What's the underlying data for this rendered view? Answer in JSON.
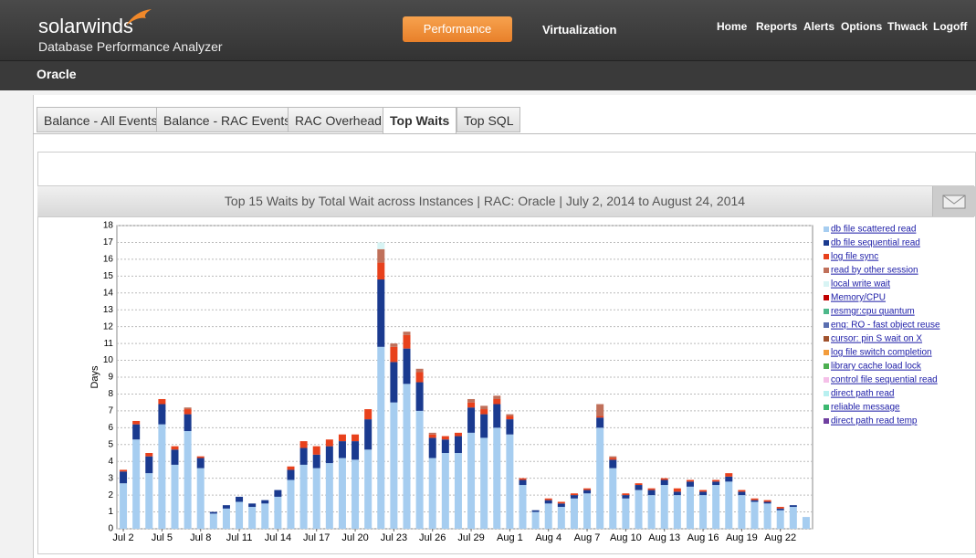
{
  "header": {
    "logo": "solarwinds",
    "product": "Database Performance Analyzer",
    "nav": [
      "Performance",
      "Virtualization"
    ],
    "links": [
      "Home",
      "Reports",
      "Alerts",
      "Options",
      "Thwack",
      "Logoff"
    ]
  },
  "subbar": {
    "title": "Oracle"
  },
  "tabs": [
    "Balance - All Events",
    "Balance - RAC Events",
    "RAC Overhead",
    "Top Waits",
    "Top SQL"
  ],
  "chart_data": {
    "type": "stacked_bar",
    "title": "Top 15 Waits by Total Wait across Instances | RAC: Oracle | July 2, 2014 to August 24, 2014",
    "y_label": "Days",
    "categories": [
      "Jul 2",
      null,
      null,
      "Jul 5",
      null,
      null,
      "Jul 8",
      null,
      null,
      "Jul 11",
      null,
      null,
      "Jul 14",
      null,
      null,
      "Jul 17",
      null,
      null,
      "Jul 20",
      null,
      null,
      "Jul 23",
      null,
      null,
      "Jul 26",
      null,
      null,
      "Jul 29",
      null,
      null,
      "Aug 1",
      null,
      null,
      "Aug 4",
      null,
      null,
      "Aug 7",
      null,
      null,
      "Aug 10",
      null,
      null,
      "Aug 13",
      null,
      null,
      "Aug 16",
      null,
      null,
      "Aug 19",
      null,
      null,
      "Aug 22",
      null,
      null
    ],
    "ylim": [
      0,
      18
    ],
    "yticks": [
      0,
      1,
      2,
      3,
      4,
      5,
      6,
      7,
      8,
      9,
      10,
      11,
      12,
      13,
      14,
      15,
      16,
      17,
      18
    ],
    "grid": true,
    "series": [
      {
        "name": "db file scattered read",
        "color": "#a6cdf0",
        "values": [
          2.7,
          5.3,
          3.3,
          6.2,
          3.8,
          5.8,
          3.6,
          0.9,
          1.2,
          1.6,
          1.3,
          1.5,
          1.9,
          2.9,
          3.8,
          3.6,
          3.9,
          4.2,
          4.1,
          4.7,
          10.8,
          7.5,
          8.6,
          7.0,
          4.2,
          4.5,
          4.5,
          5.7,
          5.4,
          6.0,
          5.6,
          2.6,
          1.0,
          1.5,
          1.3,
          1.8,
          2.1,
          6.0,
          3.6,
          1.8,
          2.3,
          2.0,
          2.6,
          2.0,
          2.5,
          2.0,
          2.6,
          2.8,
          2.0,
          1.6,
          1.5,
          1.1,
          1.3,
          0.7
        ]
      },
      {
        "name": "db file sequential read",
        "color": "#1a3a8f",
        "values": [
          0.7,
          0.9,
          1.0,
          1.2,
          0.9,
          1.0,
          0.6,
          0.1,
          0.2,
          0.3,
          0.2,
          0.2,
          0.4,
          0.6,
          1.0,
          0.8,
          1.0,
          1.0,
          1.1,
          1.8,
          4.0,
          2.4,
          2.1,
          1.7,
          1.2,
          0.8,
          1.0,
          1.5,
          1.4,
          1.4,
          0.9,
          0.3,
          0.1,
          0.2,
          0.2,
          0.2,
          0.2,
          0.6,
          0.5,
          0.2,
          0.3,
          0.3,
          0.3,
          0.2,
          0.3,
          0.2,
          0.2,
          0.3,
          0.2,
          0.1,
          0.1,
          0.1,
          0.1,
          0
        ]
      },
      {
        "name": "log file sync",
        "color": "#e8411c",
        "values": [
          0.1,
          0.2,
          0.2,
          0.3,
          0.2,
          0.3,
          0.1,
          0,
          0,
          0,
          0,
          0,
          0,
          0.2,
          0.4,
          0.5,
          0.4,
          0.4,
          0.4,
          0.6,
          1.0,
          0.9,
          0.8,
          0.6,
          0.2,
          0.2,
          0.2,
          0.3,
          0.3,
          0.3,
          0.2,
          0.1,
          0,
          0.1,
          0.1,
          0.1,
          0.1,
          0.1,
          0.1,
          0.1,
          0.1,
          0.1,
          0.1,
          0.2,
          0.1,
          0.1,
          0.1,
          0.2,
          0.1,
          0.1,
          0.1,
          0.1,
          0,
          0
        ]
      },
      {
        "name": "read by other session",
        "color": "#c0705a",
        "values": [
          0,
          0,
          0,
          0,
          0,
          0.1,
          0,
          0,
          0,
          0,
          0,
          0,
          0,
          0,
          0,
          0,
          0,
          0,
          0,
          0,
          0.8,
          0.2,
          0.2,
          0.2,
          0.1,
          0,
          0,
          0.2,
          0.2,
          0.2,
          0.1,
          0,
          0,
          0,
          0,
          0,
          0,
          0.7,
          0.1,
          0,
          0,
          0,
          0,
          0,
          0,
          0,
          0,
          0,
          0,
          0,
          0,
          0,
          0,
          0
        ]
      },
      {
        "name": "local write wait",
        "color": "#d8f4f4",
        "values": [
          0,
          0,
          0,
          0,
          0,
          0,
          0,
          0,
          0,
          0,
          0,
          0,
          0,
          0,
          0,
          0,
          0,
          0,
          0,
          0,
          0.4,
          0,
          0,
          0,
          0,
          0,
          0,
          0,
          0,
          0,
          0,
          0,
          0,
          0,
          0,
          0,
          0,
          0,
          0,
          0,
          0,
          0,
          0,
          0,
          0,
          0,
          0,
          0,
          0,
          0,
          0,
          0,
          0,
          0
        ]
      },
      {
        "name": "Memory/CPU",
        "color": "#c00000",
        "values": [
          0,
          0,
          0,
          0,
          0,
          0,
          0,
          0,
          0,
          0,
          0,
          0,
          0,
          0,
          0,
          0,
          0,
          0,
          0,
          0,
          0,
          0,
          0,
          0,
          0,
          0,
          0,
          0,
          0,
          0,
          0,
          0,
          0,
          0,
          0,
          0,
          0,
          0,
          0,
          0,
          0,
          0,
          0,
          0,
          0,
          0,
          0,
          0,
          0,
          0,
          0,
          0,
          0,
          0
        ]
      },
      {
        "name": "resmgr:cpu quantum",
        "color": "#4db88a",
        "values": [
          0,
          0,
          0,
          0,
          0,
          0,
          0,
          0,
          0,
          0,
          0,
          0,
          0,
          0,
          0,
          0,
          0,
          0,
          0,
          0,
          0,
          0,
          0,
          0,
          0,
          0,
          0,
          0,
          0,
          0,
          0,
          0,
          0,
          0,
          0,
          0,
          0,
          0,
          0,
          0,
          0,
          0,
          0,
          0,
          0,
          0,
          0,
          0,
          0,
          0,
          0,
          0,
          0,
          0
        ]
      },
      {
        "name": "enq: RO - fast object reuse",
        "color": "#5a6fb0",
        "values": [
          0,
          0,
          0,
          0,
          0,
          0,
          0,
          0,
          0,
          0,
          0,
          0,
          0,
          0,
          0,
          0,
          0,
          0,
          0,
          0,
          0,
          0,
          0,
          0,
          0,
          0,
          0,
          0,
          0,
          0,
          0,
          0,
          0,
          0,
          0,
          0,
          0,
          0,
          0,
          0,
          0,
          0,
          0,
          0,
          0,
          0,
          0,
          0,
          0,
          0,
          0,
          0,
          0,
          0
        ]
      },
      {
        "name": "cursor: pin S wait on X",
        "color": "#a0522d",
        "values": [
          0,
          0,
          0,
          0,
          0,
          0,
          0,
          0,
          0,
          0,
          0,
          0,
          0,
          0,
          0,
          0,
          0,
          0,
          0,
          0,
          0,
          0,
          0,
          0,
          0,
          0,
          0,
          0,
          0,
          0,
          0,
          0,
          0,
          0,
          0,
          0,
          0,
          0,
          0,
          0,
          0,
          0,
          0,
          0,
          0,
          0,
          0,
          0,
          0,
          0,
          0,
          0,
          0,
          0
        ]
      },
      {
        "name": "log file switch completion",
        "color": "#f39c3c",
        "values": [
          0,
          0,
          0,
          0,
          0,
          0,
          0,
          0,
          0,
          0,
          0,
          0,
          0,
          0,
          0,
          0,
          0,
          0,
          0,
          0,
          0,
          0,
          0,
          0,
          0,
          0,
          0,
          0,
          0,
          0,
          0,
          0,
          0,
          0,
          0,
          0,
          0,
          0,
          0,
          0,
          0,
          0,
          0,
          0,
          0,
          0,
          0,
          0,
          0,
          0,
          0,
          0,
          0,
          0
        ]
      },
      {
        "name": "library cache load lock",
        "color": "#4caf50",
        "values": [
          0,
          0,
          0,
          0,
          0,
          0,
          0,
          0,
          0,
          0,
          0,
          0,
          0,
          0,
          0,
          0,
          0,
          0,
          0,
          0,
          0,
          0,
          0,
          0,
          0,
          0,
          0,
          0,
          0,
          0,
          0,
          0,
          0,
          0,
          0,
          0,
          0,
          0,
          0,
          0,
          0,
          0,
          0,
          0,
          0,
          0,
          0,
          0,
          0,
          0,
          0,
          0,
          0,
          0
        ]
      },
      {
        "name": "control file sequential read",
        "color": "#f5c0e8",
        "values": [
          0,
          0,
          0,
          0,
          0,
          0,
          0,
          0,
          0,
          0,
          0,
          0,
          0,
          0,
          0,
          0,
          0,
          0,
          0,
          0,
          0,
          0,
          0,
          0,
          0,
          0,
          0,
          0,
          0,
          0,
          0,
          0,
          0,
          0,
          0,
          0,
          0,
          0,
          0,
          0,
          0,
          0,
          0,
          0,
          0,
          0,
          0,
          0,
          0,
          0,
          0,
          0,
          0,
          0
        ]
      },
      {
        "name": "direct path read",
        "color": "#b8f0f0",
        "values": [
          0,
          0,
          0,
          0,
          0,
          0,
          0,
          0,
          0,
          0,
          0,
          0,
          0,
          0,
          0,
          0,
          0,
          0,
          0,
          0,
          0,
          0,
          0,
          0,
          0,
          0,
          0,
          0,
          0,
          0,
          0,
          0,
          0,
          0,
          0,
          0,
          0,
          0,
          0,
          0,
          0,
          0,
          0,
          0,
          0,
          0,
          0,
          0,
          0,
          0,
          0,
          0,
          0,
          0
        ]
      },
      {
        "name": "reliable message",
        "color": "#3cb870",
        "values": [
          0,
          0,
          0,
          0,
          0,
          0,
          0,
          0,
          0,
          0,
          0,
          0,
          0,
          0,
          0,
          0,
          0,
          0,
          0,
          0,
          0,
          0,
          0,
          0,
          0,
          0,
          0,
          0,
          0,
          0,
          0,
          0,
          0,
          0,
          0,
          0,
          0,
          0,
          0,
          0,
          0,
          0,
          0,
          0,
          0,
          0,
          0,
          0,
          0,
          0,
          0,
          0,
          0,
          0
        ]
      },
      {
        "name": "direct path read temp",
        "color": "#7040a0",
        "values": [
          0,
          0,
          0,
          0,
          0,
          0,
          0,
          0,
          0,
          0,
          0,
          0,
          0,
          0,
          0,
          0,
          0,
          0,
          0,
          0,
          0,
          0,
          0,
          0,
          0,
          0,
          0,
          0,
          0,
          0,
          0,
          0,
          0,
          0,
          0,
          0,
          0,
          0,
          0,
          0,
          0,
          0,
          0,
          0,
          0,
          0,
          0,
          0,
          0,
          0,
          0,
          0,
          0,
          0
        ]
      }
    ]
  }
}
